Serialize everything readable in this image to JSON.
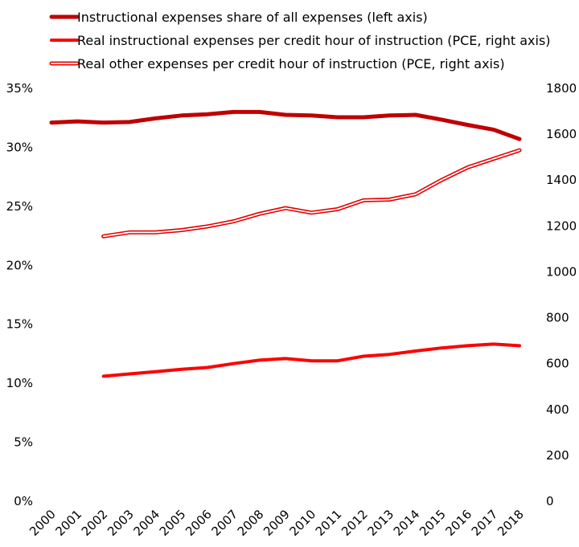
{
  "chart_data": {
    "type": "line",
    "title": "",
    "x": [
      "2000",
      "2001",
      "2002",
      "2003",
      "2004",
      "2005",
      "2006",
      "2007",
      "2008",
      "2009",
      "2010",
      "2011",
      "2012",
      "2013",
      "2014",
      "2015",
      "2016",
      "2017",
      "2018"
    ],
    "y_left": {
      "min": 0,
      "max": 0.35,
      "ticks": [
        "0%",
        "5%",
        "10%",
        "15%",
        "20%",
        "25%",
        "30%",
        "35%"
      ]
    },
    "y_right": {
      "min": 0,
      "max": 1800,
      "ticks": [
        "0",
        "200",
        "400",
        "600",
        "800",
        "1000",
        "1200",
        "1400",
        "1600",
        "1800"
      ]
    },
    "grid": false,
    "legend_position": "top-left",
    "series": [
      {
        "name": "Instructional expenses share of all expenses (left axis)",
        "axis": "left",
        "style": "thick",
        "color": "#c00000",
        "values": [
          0.321,
          0.322,
          0.321,
          0.3215,
          0.3245,
          0.327,
          0.328,
          0.33,
          0.33,
          0.3275,
          0.327,
          0.3255,
          0.3255,
          0.327,
          0.3275,
          0.3235,
          0.319,
          0.315,
          0.307
        ]
      },
      {
        "name": "Real instructional expenses per credit hour of instruction (PCE, right axis)",
        "axis": "right",
        "style": "medium",
        "color": "#ff0000",
        "values": [
          null,
          null,
          545,
          555,
          565,
          575,
          583,
          600,
          615,
          622,
          612,
          612,
          632,
          640,
          655,
          668,
          678,
          685,
          678
        ]
      },
      {
        "name": "Real other expenses per credit hour of instruction (PCE, right axis)",
        "axis": "right",
        "style": "double",
        "color": "#e30000",
        "values": [
          null,
          null,
          1155,
          1172,
          1172,
          1182,
          1198,
          1220,
          1253,
          1278,
          1258,
          1273,
          1312,
          1315,
          1338,
          1400,
          1455,
          1493,
          1530
        ]
      }
    ]
  }
}
